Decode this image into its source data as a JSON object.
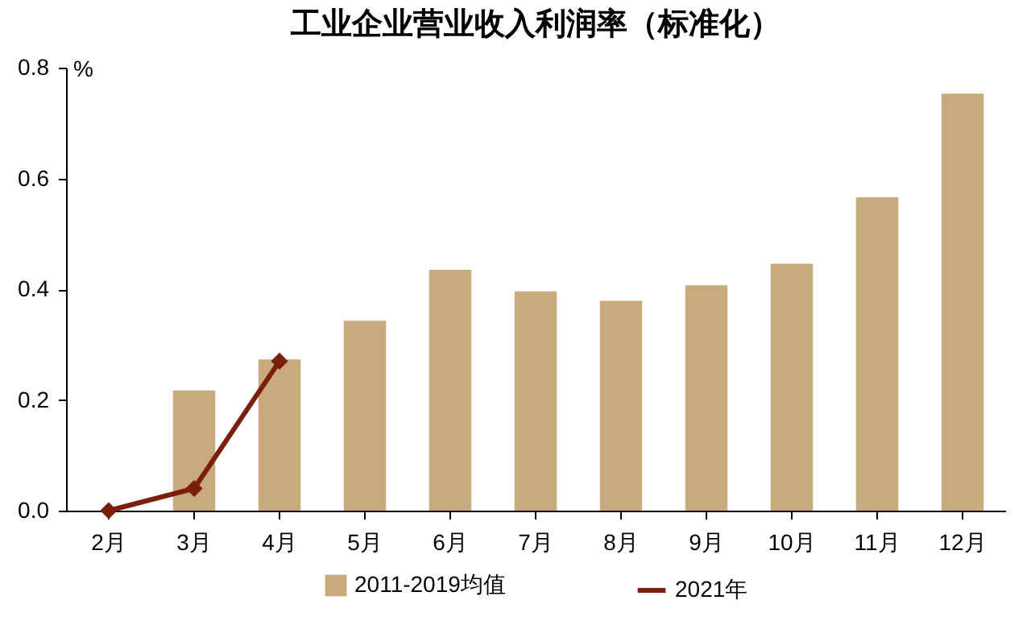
{
  "chart_data": {
    "type": "bar",
    "title": "工业企业营业收入利润率（标准化）",
    "ylabel": "%",
    "categories": [
      "2月",
      "3月",
      "4月",
      "5月",
      "6月",
      "7月",
      "8月",
      "9月",
      "10月",
      "11月",
      "12月"
    ],
    "series": [
      {
        "name": "2011-2019均值",
        "color": "#c9aa7c",
        "values": [
          null,
          0.217,
          0.273,
          0.343,
          0.435,
          0.396,
          0.379,
          0.407,
          0.446,
          0.566,
          0.753
        ]
      },
      {
        "name": "2021年",
        "type": "line",
        "color": "#7b1e0c",
        "marker": "diamond",
        "values": [
          0,
          0.04,
          0.27,
          null,
          null,
          null,
          null,
          null,
          null,
          null,
          null
        ]
      }
    ],
    "ylim": [
      0,
      0.8
    ],
    "yticks": [
      {
        "value": 0,
        "label": "0.0"
      },
      0.2,
      0.4,
      0.6,
      0.8
    ],
    "grid": false,
    "legend": "bottom"
  }
}
